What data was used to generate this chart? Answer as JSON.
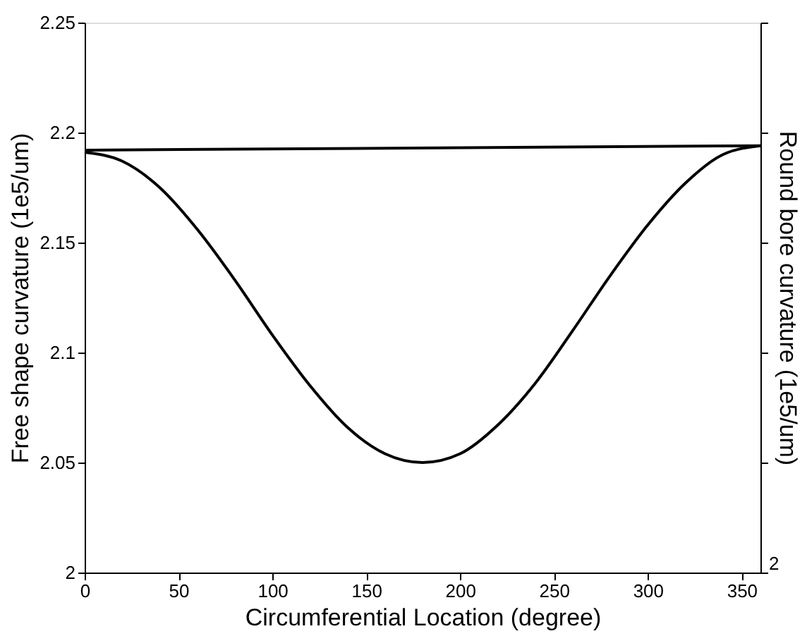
{
  "chart_data": {
    "type": "line",
    "xlabel": "Circumferential Location (degree)",
    "ylabel": "Free shape curvature (1e5/um)",
    "y2label": "Round bore curvature (1e5/um)",
    "xlim": [
      0,
      360
    ],
    "xticks": [
      0,
      50,
      100,
      150,
      200,
      250,
      300,
      350
    ],
    "ylim": [
      2,
      2.25
    ],
    "yticks": [
      2,
      2.05,
      2.1,
      2.15,
      2.2,
      2.25
    ],
    "annotations": [
      "2"
    ],
    "grid": false,
    "marker": "none",
    "line_style": "solid",
    "series": [
      {
        "color": "#000000",
        "x": [
          0,
          20,
          40,
          60,
          80,
          100,
          120,
          140,
          160,
          180,
          200,
          220,
          240,
          260,
          280,
          300,
          320,
          340,
          360
        ],
        "values": [
          2.191,
          2.187,
          2.175,
          2.156,
          2.133,
          2.108,
          2.085,
          2.066,
          2.054,
          2.05,
          2.054,
          2.067,
          2.086,
          2.11,
          2.135,
          2.158,
          2.177,
          2.19,
          2.194
        ]
      },
      {
        "color": "#000000",
        "x": [
          0,
          360
        ],
        "values": [
          2.192,
          2.194
        ]
      }
    ]
  }
}
